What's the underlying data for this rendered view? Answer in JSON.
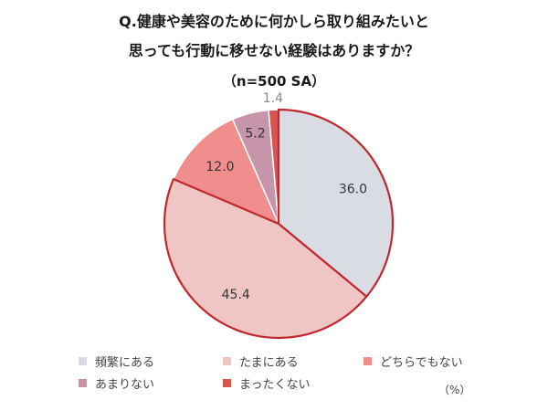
{
  "title_lines": [
    "Q.健康や美容のために何かしら取り組みたいと",
    "思っても行動に移せない経験はありますか？",
    "（n=500 SA）"
  ],
  "unit_label": "（%）",
  "chart_data": {
    "type": "pie",
    "start_angle_deg": 0,
    "direction": "clockwise",
    "slices": [
      {
        "label": "頻繁にある",
        "value": 36.0,
        "value_label": "36.0",
        "color": "#d9dce3",
        "highlight": true
      },
      {
        "label": "たまにある",
        "value": 45.4,
        "value_label": "45.4",
        "color": "#efc6c4",
        "highlight": true
      },
      {
        "label": "どちらでもない",
        "value": 12.0,
        "value_label": "12.0",
        "color": "#f08e8e",
        "highlight": false
      },
      {
        "label": "あまりない",
        "value": 5.2,
        "value_label": "5.2",
        "color": "#c795aa",
        "highlight": false
      },
      {
        "label": "まったくない",
        "value": 1.4,
        "value_label": "1.4",
        "color": "#d9534f",
        "highlight": false
      }
    ],
    "highlight_color": "#c0282e",
    "legend_position": "bottom"
  }
}
